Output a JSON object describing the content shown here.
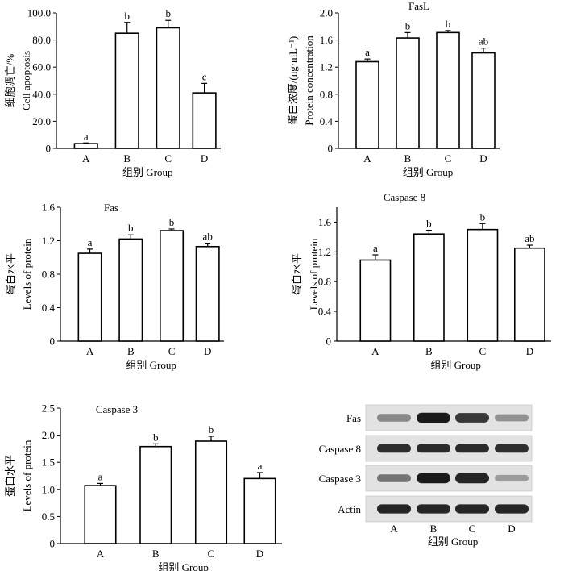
{
  "chart_data": [
    {
      "id": "p1",
      "type": "bar",
      "title": "",
      "categories": [
        "A",
        "B",
        "C",
        "D"
      ],
      "values": [
        3.5,
        85.0,
        89.0,
        41.0
      ],
      "errors": [
        0.5,
        8.0,
        5.5,
        7.0
      ],
      "labels": [
        "a",
        "b",
        "b",
        "c"
      ],
      "ylim": [
        0,
        100
      ],
      "yticks": [
        "0",
        "20.0",
        "40.0",
        "60.0",
        "80.0",
        "100.0"
      ],
      "ylabel_cn": "细胞凋亡/%",
      "ylabel_en": "Cell apoptosis",
      "xlabel": "组别  Group"
    },
    {
      "id": "p2",
      "type": "bar",
      "title": "FasL",
      "categories": [
        "A",
        "B",
        "C",
        "D"
      ],
      "values": [
        1.28,
        1.63,
        1.71,
        1.41
      ],
      "errors": [
        0.04,
        0.08,
        0.03,
        0.07
      ],
      "labels": [
        "a",
        "b",
        "b",
        "ab"
      ],
      "ylim": [
        0,
        2.0
      ],
      "yticks": [
        "0",
        "0.4",
        "0.8",
        "1.2",
        "1.6",
        "2.0"
      ],
      "ylabel_cn": "蛋白浓度/(ng·mL⁻¹)",
      "ylabel_en": "Protein concentration",
      "xlabel": "组别  Group"
    },
    {
      "id": "p3",
      "type": "bar",
      "title": "Fas",
      "categories": [
        "A",
        "B",
        "C",
        "D"
      ],
      "values": [
        1.05,
        1.22,
        1.32,
        1.13
      ],
      "errors": [
        0.05,
        0.05,
        0.02,
        0.04
      ],
      "labels": [
        "a",
        "b",
        "b",
        "ab"
      ],
      "ylim": [
        0,
        1.6
      ],
      "yticks": [
        "0",
        "0.4",
        "0.8",
        "1.2",
        "1.6"
      ],
      "ylabel_cn": "蛋白水平",
      "ylabel_en": "Levels of protein",
      "xlabel": "组别  Group"
    },
    {
      "id": "p4",
      "type": "bar",
      "title": "Caspase 8",
      "categories": [
        "A",
        "B",
        "C",
        "D"
      ],
      "values": [
        1.09,
        1.44,
        1.5,
        1.25
      ],
      "errors": [
        0.07,
        0.05,
        0.08,
        0.04
      ],
      "labels": [
        "a",
        "b",
        "b",
        "ab"
      ],
      "ylim": [
        0,
        1.8
      ],
      "yticks": [
        "0",
        "0.4",
        "0.8",
        "1.2",
        "1.6"
      ],
      "ylabel_cn": "蛋白水平",
      "ylabel_en": "Levels of protein",
      "xlabel": "组别  Group"
    },
    {
      "id": "p5",
      "type": "bar",
      "title": "Caspase 3",
      "categories": [
        "A",
        "B",
        "C",
        "D"
      ],
      "values": [
        1.07,
        1.79,
        1.89,
        1.2
      ],
      "errors": [
        0.04,
        0.05,
        0.09,
        0.11
      ],
      "labels": [
        "a",
        "b",
        "b",
        "a"
      ],
      "ylim": [
        0,
        2.5
      ],
      "yticks": [
        "0",
        "0.5",
        "1.0",
        "1.5",
        "2.0",
        "2.5"
      ],
      "ylabel_cn": "蛋白水平",
      "ylabel_en": "Levels of protein",
      "xlabel": "组别  Group"
    }
  ],
  "blot": {
    "rows": [
      {
        "label": "Fas",
        "intensity": [
          0.45,
          1.0,
          0.85,
          0.4
        ],
        "thickness": [
          0.45,
          0.7,
          0.65,
          0.4
        ]
      },
      {
        "label": "Caspase 8",
        "intensity": [
          0.9,
          0.92,
          0.92,
          0.9
        ],
        "thickness": [
          0.55,
          0.55,
          0.55,
          0.55
        ]
      },
      {
        "label": "Caspase 3",
        "intensity": [
          0.55,
          1.0,
          0.95,
          0.35
        ],
        "thickness": [
          0.45,
          0.7,
          0.7,
          0.35
        ]
      },
      {
        "label": "Actin",
        "intensity": [
          0.95,
          0.95,
          0.95,
          0.95
        ],
        "thickness": [
          0.6,
          0.6,
          0.6,
          0.6
        ]
      }
    ],
    "lanes": [
      "A",
      "B",
      "C",
      "D"
    ],
    "xlabel": "组别  Group",
    "band_color": "#1a1a1a",
    "panel_color": "#e2e2e2"
  }
}
